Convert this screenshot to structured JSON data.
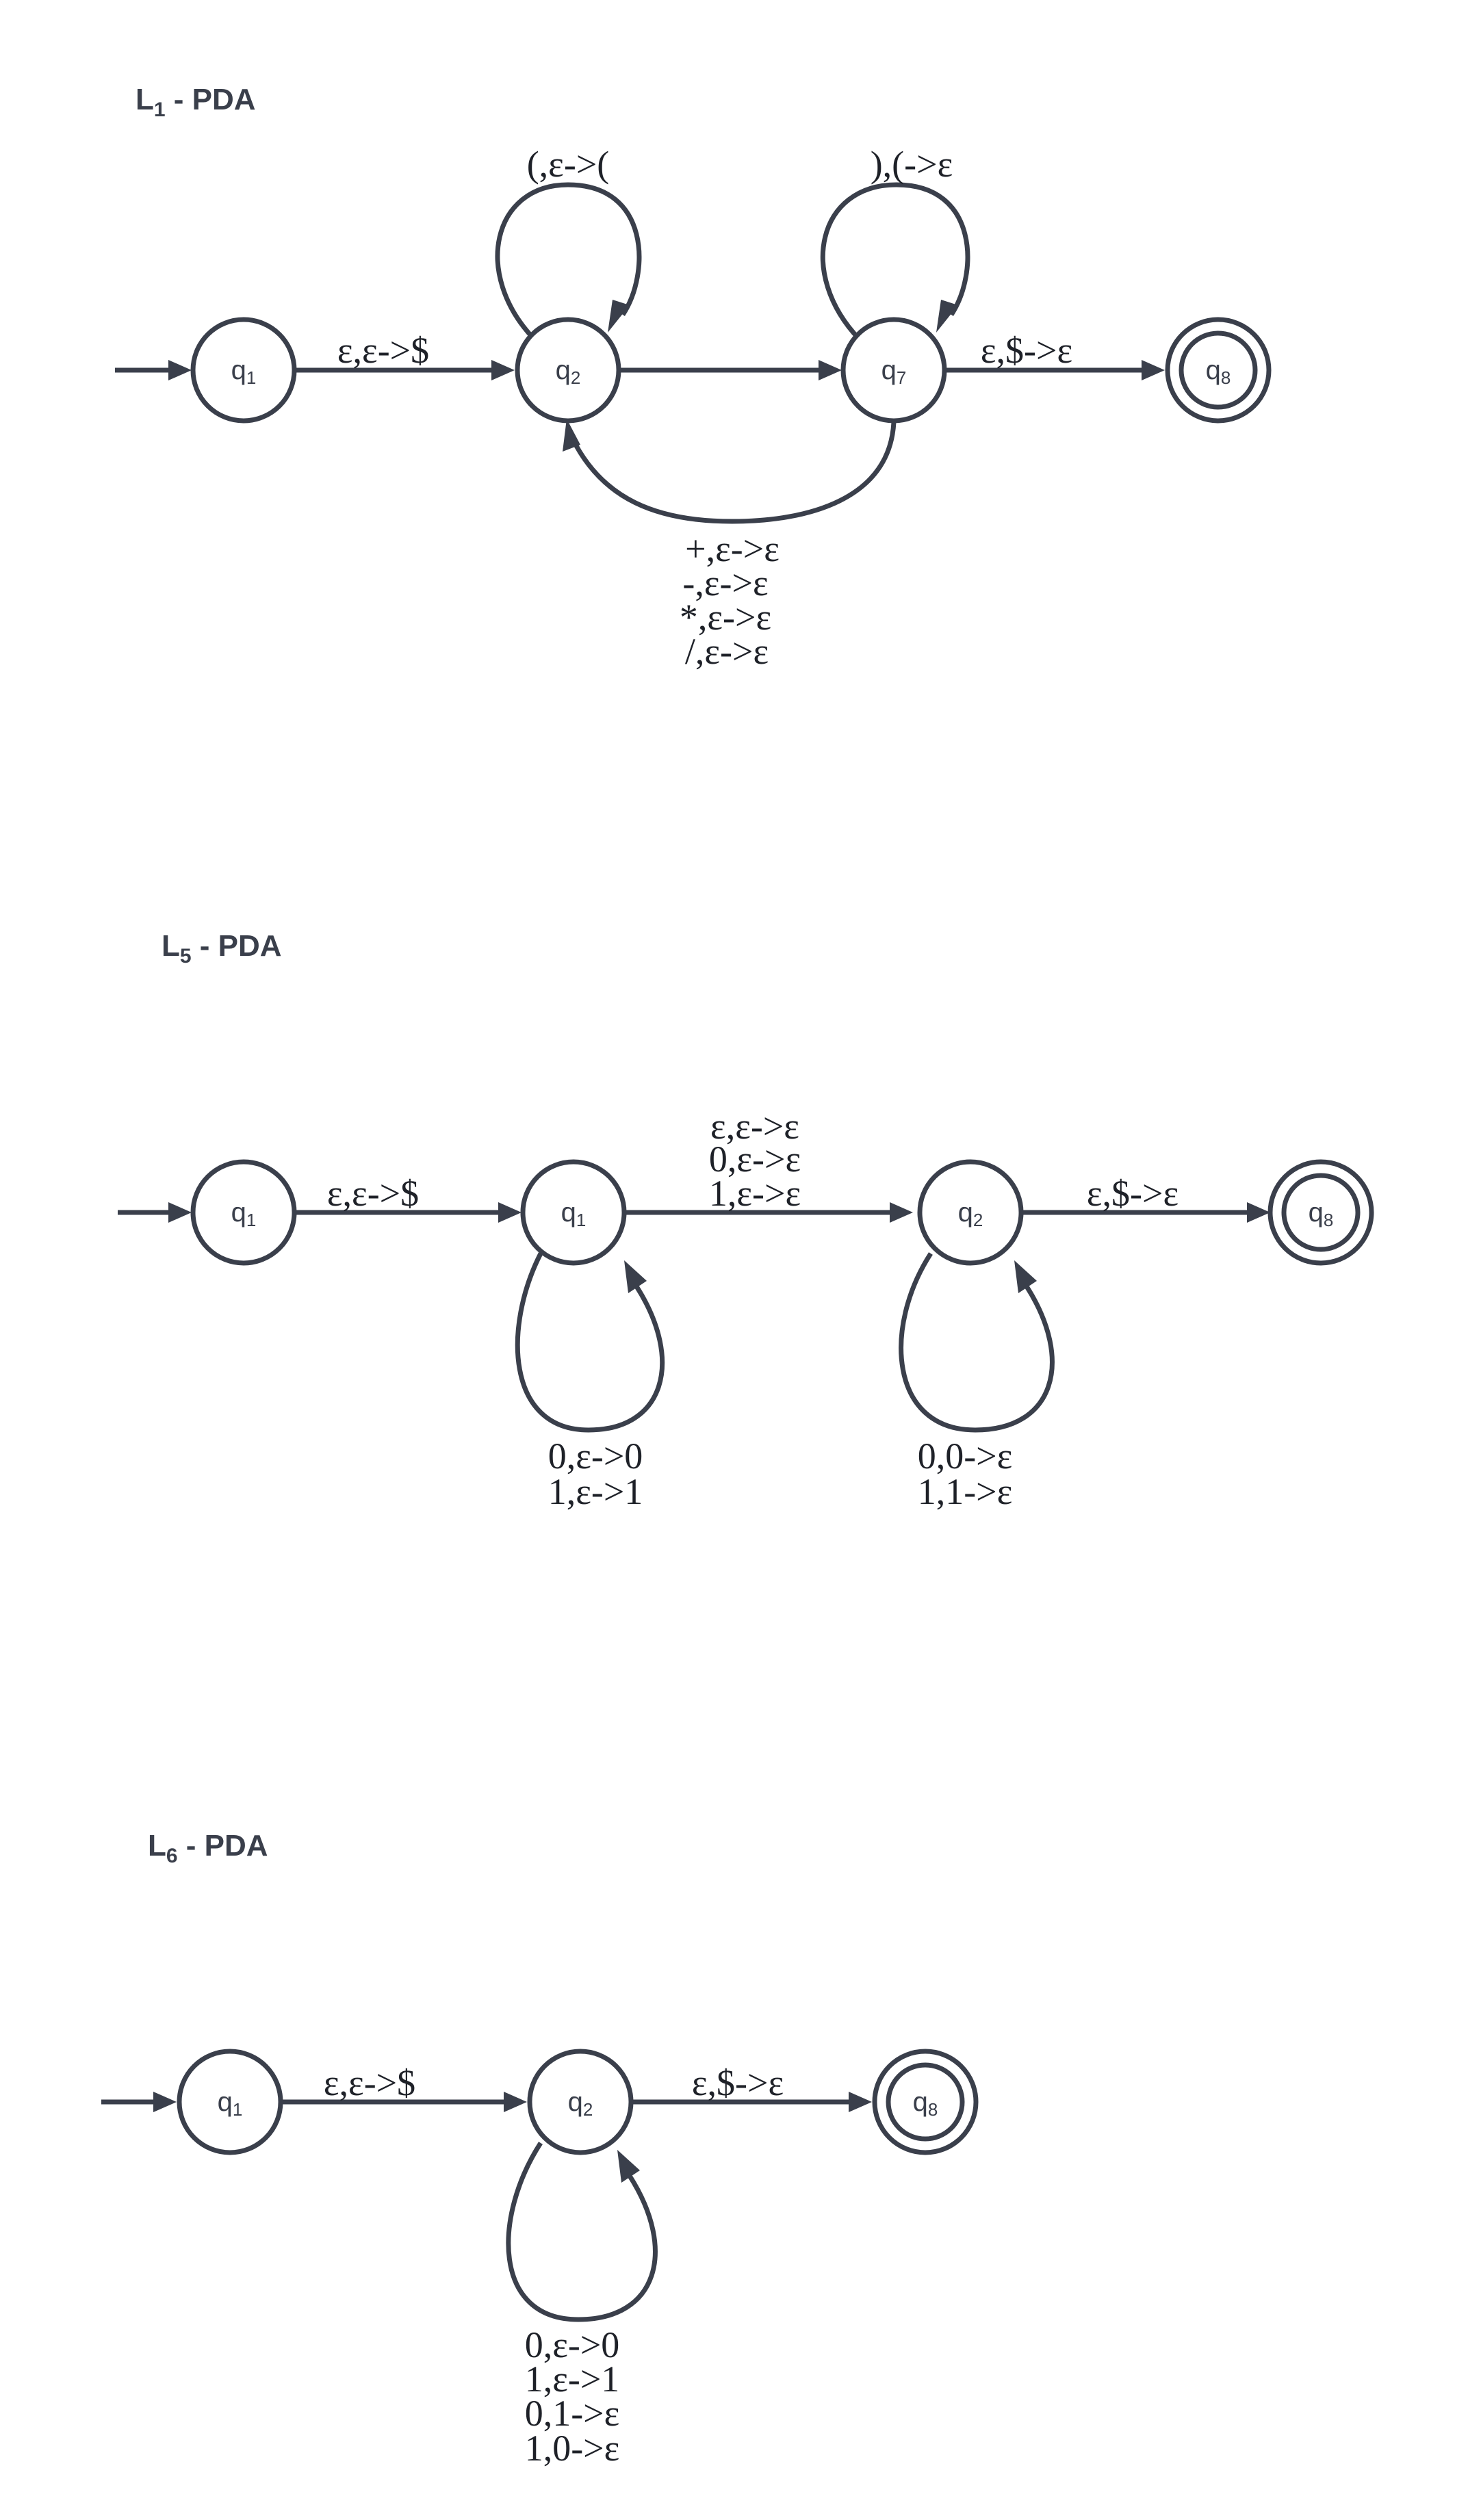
{
  "diagrams": [
    {
      "title": {
        "main": "L",
        "sub": "1",
        "rest": " - PDA"
      },
      "states": [
        {
          "name": "q",
          "sub": "1"
        },
        {
          "name": "q",
          "sub": "2"
        },
        {
          "name": "q",
          "sub": "7"
        },
        {
          "name": "q",
          "sub": "8",
          "accepting": true
        }
      ],
      "transitions": [
        {
          "from": "q1",
          "to": "q2",
          "labels": [
            "ε,ε->$"
          ]
        },
        {
          "from": "q2",
          "to": "q2",
          "labels": [
            "(,ε->("
          ]
        },
        {
          "from": "q2",
          "to": "q7",
          "labels": []
        },
        {
          "from": "q7",
          "to": "q7",
          "labels": [
            "),(->ε"
          ]
        },
        {
          "from": "q7",
          "to": "q8",
          "labels": [
            "ε,$->ε"
          ]
        },
        {
          "from": "q7",
          "to": "q2",
          "labels": [
            "+,ε->ε",
            "-,ε->ε",
            "*,ε->ε",
            "/,ε->ε"
          ]
        }
      ]
    },
    {
      "title": {
        "main": "L",
        "sub": "5",
        "rest": " - PDA"
      },
      "states": [
        {
          "name": "q",
          "sub": "1"
        },
        {
          "name": "q",
          "sub": "1"
        },
        {
          "name": "q",
          "sub": "2"
        },
        {
          "name": "q",
          "sub": "8",
          "accepting": true
        }
      ],
      "transitions": [
        {
          "from": "q1",
          "to": "q1'",
          "labels": [
            "ε,ε->$"
          ]
        },
        {
          "from": "q1'",
          "to": "q1'",
          "labels": [
            "0,ε->0",
            "1,ε->1"
          ]
        },
        {
          "from": "q1'",
          "to": "q2",
          "labels": [
            "ε,ε->ε",
            "0,ε->ε",
            "1,ε->ε"
          ]
        },
        {
          "from": "q2",
          "to": "q2",
          "labels": [
            "0,0->ε",
            "1,1->ε"
          ]
        },
        {
          "from": "q2",
          "to": "q8",
          "labels": [
            "ε,$->ε"
          ]
        }
      ]
    },
    {
      "title": {
        "main": "L",
        "sub": "6",
        "rest": " - PDA"
      },
      "states": [
        {
          "name": "q",
          "sub": "1"
        },
        {
          "name": "q",
          "sub": "2"
        },
        {
          "name": "q",
          "sub": "8",
          "accepting": true
        }
      ],
      "transitions": [
        {
          "from": "q1",
          "to": "q2",
          "labels": [
            "ε,ε->$"
          ]
        },
        {
          "from": "q2",
          "to": "q2",
          "labels": [
            "0,ε->0",
            "1,ε->1",
            "0,1->ε",
            "1,0->ε"
          ]
        },
        {
          "from": "q2",
          "to": "q8",
          "labels": [
            "ε,$->ε"
          ]
        }
      ]
    }
  ]
}
